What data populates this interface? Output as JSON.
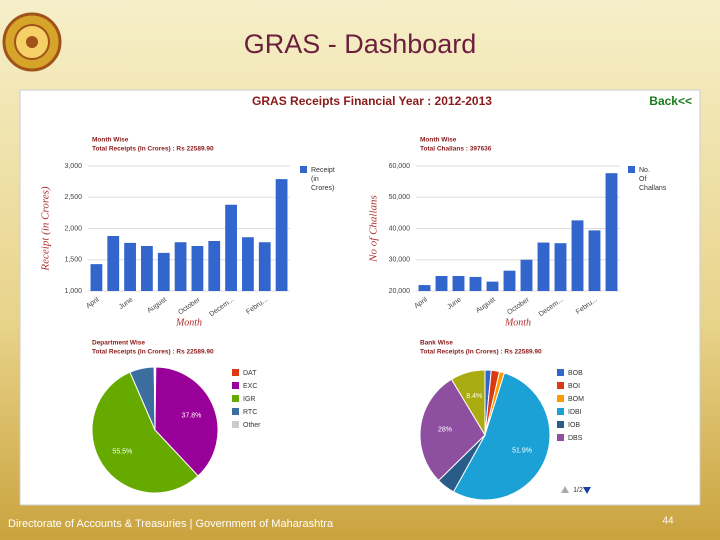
{
  "slide": {
    "title": "GRAS - Dashboard",
    "footer": "Directorate of Accounts & Treasuries | Government of Maharashtra",
    "page_number": 44
  },
  "dashboard": {
    "heading": "GRAS Receipts Financial Year : 2012-2013",
    "back_link": "Back<<",
    "pager": "1/2"
  },
  "chart_data": [
    {
      "type": "bar",
      "title": "Month Wise",
      "subtitle": "Total Receipts (In Crores) : Rs 22589.90",
      "categories": [
        "April",
        null,
        "June",
        null,
        "August",
        null,
        "October",
        null,
        "Decem...",
        null,
        "Febru...",
        null
      ],
      "series": [
        {
          "name": "Receipt (in Crores)",
          "color": "#3366cc",
          "values": [
            1430,
            1880,
            1770,
            1720,
            1610,
            1780,
            1720,
            1800,
            2380,
            1860,
            1780,
            2790
          ]
        }
      ],
      "ylim": [
        1000,
        3000
      ],
      "yticks": [
        {
          "value": 1000,
          "label": "1,000"
        },
        {
          "value": 1500,
          "label": "1,500"
        },
        {
          "value": 2000,
          "label": "2,000"
        },
        {
          "value": 2500,
          "label": "2,500"
        },
        {
          "value": 3000,
          "label": "3,000"
        }
      ],
      "y_label": "Receipt (in Crores)",
      "x_label": "Month",
      "grid": true
    },
    {
      "type": "bar",
      "title": "Month Wise",
      "subtitle": "Total Challans : 397636",
      "categories": [
        "April",
        null,
        "June",
        null,
        "August",
        null,
        "October",
        null,
        "Decem...",
        null,
        "Febru...",
        null
      ],
      "series": [
        {
          "name": "No. Of Challans",
          "color": "#3366cc",
          "values": [
            21900,
            24800,
            24800,
            24500,
            23000,
            26500,
            30000,
            35500,
            35300,
            42600,
            39400,
            57700
          ]
        }
      ],
      "ylim": [
        20000,
        60000
      ],
      "yticks": [
        {
          "value": 20000,
          "label": "20,000"
        },
        {
          "value": 30000,
          "label": "30,000"
        },
        {
          "value": 40000,
          "label": "40,000"
        },
        {
          "value": 50000,
          "label": "50,000"
        },
        {
          "value": 60000,
          "label": "60,000"
        }
      ],
      "y_label": "No of Challans",
      "x_label": "Month",
      "grid": true
    },
    {
      "type": "pie",
      "title": "Department Wise",
      "subtitle": "Total Receipts (In Crores) : Rs 22589.90",
      "categories": [
        "DAT",
        "EXC",
        "IGR",
        "RTC",
        "Other"
      ],
      "values": [
        0.2,
        37.8,
        55.5,
        6.3,
        0.2
      ],
      "value_labels": [
        null,
        "37.8%",
        "55.5%",
        null,
        null
      ],
      "colors": [
        "#dc3912",
        "#990099",
        "#66aa00",
        "#3b6e9e",
        "#cccccc"
      ]
    },
    {
      "type": "pie",
      "title": "Bank Wise",
      "subtitle": "Total Receipts (In Crores) : Rs 22589.90",
      "categories": [
        "BOB",
        "BOI",
        "BOM",
        "IDBI",
        "IOB",
        "DBS",
        null
      ],
      "values": [
        1.5,
        2.0,
        1.2,
        51.9,
        4.5,
        28.0,
        8.4
      ],
      "value_labels": [
        null,
        null,
        null,
        "51.9%",
        null,
        "28%",
        "8.4%"
      ],
      "colors": [
        "#3366cc",
        "#dc3912",
        "#ff9900",
        "#1ba1d6",
        "#2a5c8a",
        "#8e4fa0",
        "#aaaa11"
      ]
    }
  ]
}
